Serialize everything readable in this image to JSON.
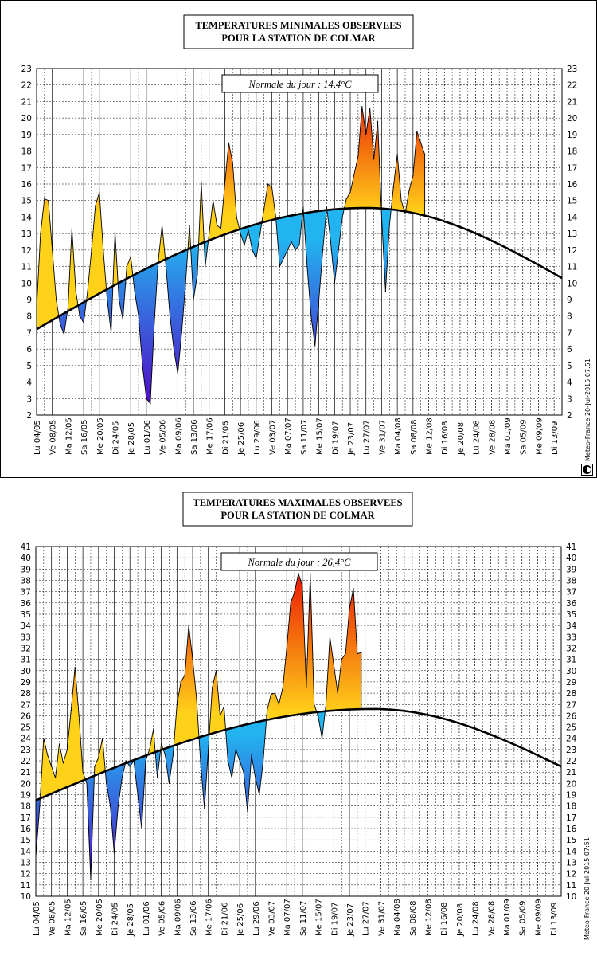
{
  "footer": {
    "credit": "Meteo-France 20-Jul-2015 07:51"
  },
  "colors": {
    "warm_low": "#ffd21a",
    "warm_high": "#e80000",
    "cold_low": "#22b4f0",
    "cold_high": "#5010c8",
    "grid": "#000000",
    "normal_line": "#000000"
  },
  "x_ticks": [
    "Lu 04/05",
    "Ve 08/05",
    "Ma 12/05",
    "Sa 16/05",
    "Me 20/05",
    "Di 24/05",
    "Je 28/05",
    "Lu 01/06",
    "Ve 05/06",
    "Ma 09/06",
    "Sa 13/06",
    "Me 17/06",
    "Di 21/06",
    "Je 25/06",
    "Lu 29/06",
    "Ve 03/07",
    "Ma 07/07",
    "Sa 11/07",
    "Me 15/07",
    "Di 19/07",
    "Je 23/07",
    "Lu 27/07",
    "Ve 31/07",
    "Ma 04/08",
    "Sa 08/08",
    "Me 12/08",
    "Di 16/08",
    "Je 20/08",
    "Lu 24/08",
    "Ve 28/08",
    "Ma 01/09",
    "Sa 05/09",
    "Me 09/09",
    "Di 13/09"
  ],
  "chart_data": [
    {
      "type": "area",
      "title": [
        "TEMPERATURES MINIMALES OBSERVEES",
        "POUR LA STATION DE COLMAR"
      ],
      "annotation": "Normale du jour : 14,4°C",
      "ylim": [
        2,
        23
      ],
      "grid": true,
      "x_unit": "day index from Lu 04/05",
      "observed": [
        8.5,
        13.0,
        15.1,
        15.0,
        12.0,
        9.0,
        7.5,
        6.9,
        8.5,
        13.3,
        9.5,
        8.0,
        7.6,
        9.5,
        12.0,
        14.7,
        15.5,
        12.0,
        9.0,
        7.0,
        13.1,
        9.0,
        7.8,
        11.0,
        11.6,
        9.5,
        8.0,
        5.0,
        3.0,
        2.7,
        7.5,
        11.3,
        13.5,
        11.0,
        8.0,
        6.0,
        4.5,
        7.0,
        10.0,
        13.5,
        9.0,
        10.5,
        16.1,
        11.0,
        13.0,
        15.0,
        13.5,
        13.3,
        16.0,
        18.5,
        17.3,
        14.0,
        13.0,
        12.3,
        13.2,
        12.0,
        11.5,
        13.0,
        14.5,
        16.0,
        15.8,
        14.0,
        11.0,
        11.5,
        12.0,
        12.5,
        12.0,
        12.3,
        14.6,
        11.0,
        8.0,
        6.2,
        9.0,
        12.0,
        14.6,
        12.5,
        10.0,
        12.0,
        14.0,
        15.1,
        15.5,
        16.6,
        17.7,
        20.7,
        19.0,
        20.6,
        17.5,
        19.8,
        14.0,
        9.5,
        13.5,
        15.8,
        17.8,
        15.0,
        14.2,
        15.6,
        16.5,
        19.2,
        18.5,
        17.8
      ],
      "normal_start": 7.2,
      "normal_peak": 14.55,
      "normal_peak_day": 84,
      "normal_end": 10.3,
      "days": 134
    },
    {
      "type": "area",
      "title": [
        "TEMPERATURES MAXIMALES OBSERVEES",
        "POUR LA STATION DE COLMAR"
      ],
      "annotation": "Normale du jour : 26,4°C",
      "ylim": [
        10,
        41
      ],
      "grid": true,
      "x_unit": "day index from Lu 04/05",
      "observed": [
        13.5,
        18.0,
        24.0,
        22.5,
        21.5,
        20.5,
        23.5,
        21.8,
        23.0,
        26.5,
        30.3,
        26.0,
        21.0,
        20.0,
        11.5,
        21.5,
        22.3,
        24.0,
        20.0,
        18.0,
        13.8,
        18.0,
        20.5,
        22.0,
        21.5,
        22.0,
        19.0,
        16.0,
        22.0,
        23.0,
        24.8,
        20.5,
        23.5,
        22.5,
        20.0,
        22.5,
        27.0,
        29.0,
        29.6,
        34.0,
        31.0,
        27.5,
        22.0,
        17.8,
        23.0,
        28.5,
        30.0,
        26.0,
        26.8,
        22.0,
        20.5,
        23.0,
        22.0,
        21.0,
        17.5,
        22.5,
        20.5,
        19.0,
        22.0,
        26.5,
        27.9,
        28.0,
        27.0,
        28.5,
        32.0,
        36.0,
        37.0,
        38.6,
        37.5,
        28.5,
        38.5,
        27.0,
        26.0,
        24.0,
        27.0,
        33.0,
        30.5,
        28.0,
        31.0,
        31.5,
        35.5,
        37.3,
        31.5,
        31.6
      ],
      "normal_start": 18.5,
      "normal_peak": 26.6,
      "normal_peak_day": 86,
      "normal_end": 21.5,
      "days": 134
    }
  ]
}
